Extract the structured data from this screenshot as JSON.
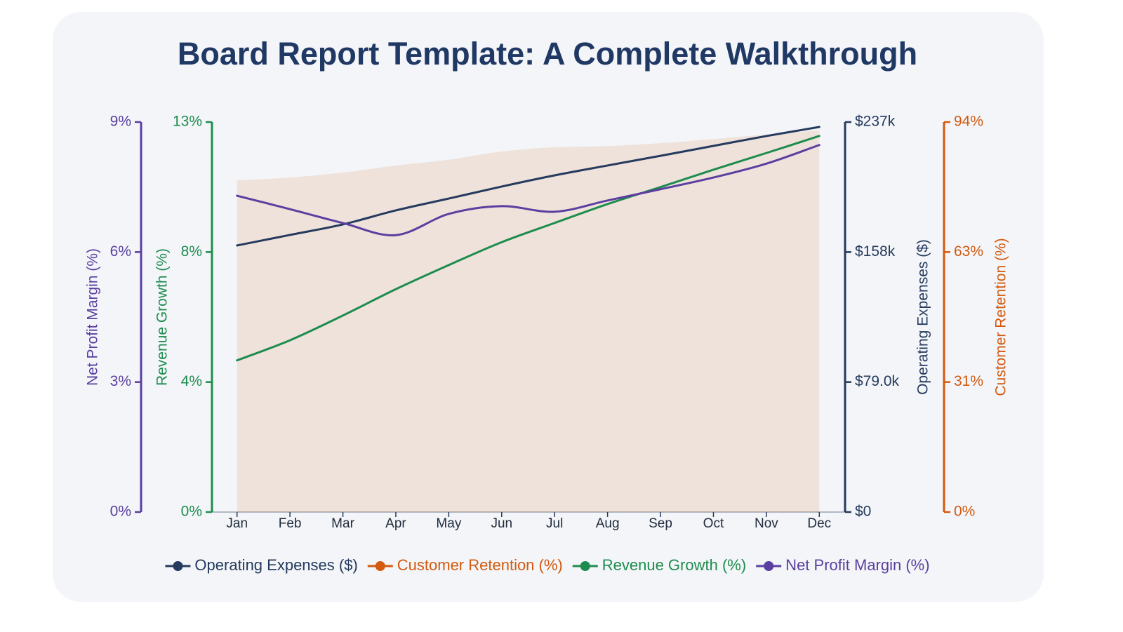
{
  "chart_data": {
    "type": "multi-axis-line",
    "title": "Board Report Template: A Complete Walkthrough",
    "categories": [
      "Jan",
      "Feb",
      "Mar",
      "Apr",
      "May",
      "Jun",
      "Jul",
      "Aug",
      "Sep",
      "Oct",
      "Nov",
      "Dec"
    ],
    "axes": [
      {
        "title": "Net Profit Margin (%)",
        "side": "left",
        "color": "#5b3fa0",
        "ylim": [
          0,
          9
        ],
        "yticks": [
          {
            "value": 0,
            "label": "0%"
          },
          {
            "value": 3,
            "label": "3%"
          },
          {
            "value": 6,
            "label": "6%"
          },
          {
            "value": 9,
            "label": "9%"
          }
        ]
      },
      {
        "title": "Revenue Growth (%)",
        "side": "left",
        "color": "#1e8c4e",
        "ylim": [
          0,
          12.6
        ],
        "yticks": [
          {
            "value": 0,
            "label": "0%"
          },
          {
            "value": 4.2,
            "label": "4%"
          },
          {
            "value": 8.4,
            "label": "8%"
          },
          {
            "value": 12.6,
            "label": "13%"
          }
        ]
      },
      {
        "title": "Operating Expenses ($)",
        "side": "right",
        "color": "#253a5e",
        "ylim": [
          0,
          237000
        ],
        "yticks": [
          {
            "value": 0,
            "label": "$0"
          },
          {
            "value": 79000,
            "label": "$79.0k"
          },
          {
            "value": 158000,
            "label": "$158k"
          },
          {
            "value": 237000,
            "label": "$237k"
          }
        ]
      },
      {
        "title": "Customer Retention (%)",
        "side": "right",
        "color": "#d35a0f",
        "ylim": [
          0,
          94.2
        ],
        "yticks": [
          {
            "value": 0,
            "label": "0%"
          },
          {
            "value": 31.4,
            "label": "31%"
          },
          {
            "value": 62.8,
            "label": "63%"
          },
          {
            "value": 94.2,
            "label": "94%"
          }
        ]
      }
    ],
    "series": [
      {
        "name": "Operating Expenses ($)",
        "color": "#253a5e",
        "axis": 2,
        "style": "line",
        "values": [
          162000,
          168400,
          174800,
          183300,
          190500,
          197800,
          204600,
          210600,
          216500,
          222500,
          228500,
          234000
        ]
      },
      {
        "name": "Customer Retention (%)",
        "color": "#d35a0f",
        "axis": 3,
        "style": "area",
        "values": [
          80.1,
          80.8,
          82.0,
          83.7,
          85.1,
          87.1,
          88.1,
          88.4,
          89.1,
          90.1,
          91.2,
          92.2
        ]
      },
      {
        "name": "Revenue Growth (%)",
        "color": "#1e8c4e",
        "axis": 1,
        "style": "line",
        "values": [
          4.9,
          5.55,
          6.35,
          7.2,
          7.98,
          8.72,
          9.34,
          9.95,
          10.5,
          11.06,
          11.6,
          12.15
        ]
      },
      {
        "name": "Net Profit Margin (%)",
        "color": "#5b3fa0",
        "axis": 0,
        "style": "line",
        "values": [
          7.3,
          6.99,
          6.67,
          6.39,
          6.88,
          7.06,
          6.93,
          7.19,
          7.45,
          7.72,
          8.04,
          8.47
        ]
      }
    ]
  }
}
